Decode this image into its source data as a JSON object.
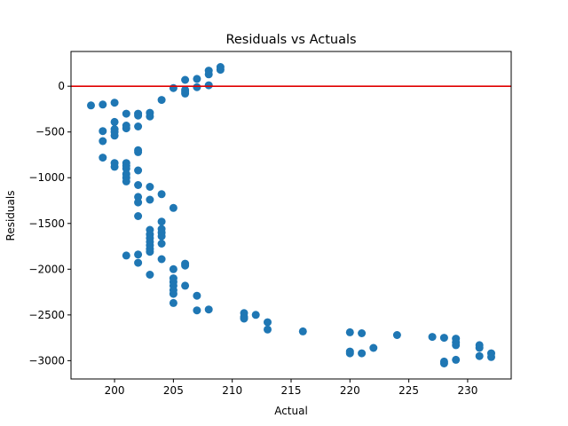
{
  "chart_data": {
    "type": "scatter",
    "title": "Residuals vs Actuals",
    "xlabel": "Actual",
    "ylabel": "Residuals",
    "xlim": [
      196.3,
      233.7
    ],
    "ylim": [
      -3200,
      380
    ],
    "xticks": [
      200,
      205,
      210,
      215,
      220,
      225,
      230
    ],
    "yticks": [
      -3000,
      -2500,
      -2000,
      -1500,
      -1000,
      -500,
      0
    ],
    "ytick_labels": [
      "−3000",
      "−2500",
      "−2000",
      "−1500",
      "−1000",
      "−500",
      "0"
    ],
    "grid": false,
    "reference_line": {
      "y": 0,
      "color": "#e00000"
    },
    "marker_color": "#1f77b4",
    "points": [
      [
        198,
        -210
      ],
      [
        199,
        -200
      ],
      [
        200,
        -180
      ],
      [
        204,
        -150
      ],
      [
        201,
        -300
      ],
      [
        202,
        -300
      ],
      [
        203,
        -290
      ],
      [
        202,
        -320
      ],
      [
        203,
        -330
      ],
      [
        200,
        -390
      ],
      [
        201,
        -430
      ],
      [
        202,
        -440
      ],
      [
        201,
        -460
      ],
      [
        199,
        -490
      ],
      [
        200,
        -470
      ],
      [
        200,
        -500
      ],
      [
        200,
        -540
      ],
      [
        199,
        -600
      ],
      [
        202,
        -700
      ],
      [
        202,
        -720
      ],
      [
        199,
        -780
      ],
      [
        200,
        -840
      ],
      [
        201,
        -840
      ],
      [
        200,
        -880
      ],
      [
        201,
        -870
      ],
      [
        202,
        -920
      ],
      [
        201,
        -900
      ],
      [
        201,
        -960
      ],
      [
        201,
        -1000
      ],
      [
        201,
        -1040
      ],
      [
        202,
        -1080
      ],
      [
        203,
        -1100
      ],
      [
        204,
        -1180
      ],
      [
        202,
        -1210
      ],
      [
        203,
        -1240
      ],
      [
        202,
        -1270
      ],
      [
        205,
        -1330
      ],
      [
        202,
        -1420
      ],
      [
        204,
        -1480
      ],
      [
        204,
        -1560
      ],
      [
        203,
        -1570
      ],
      [
        204,
        -1600
      ],
      [
        203,
        -1620
      ],
      [
        204,
        -1640
      ],
      [
        203,
        -1660
      ],
      [
        203,
        -1700
      ],
      [
        204,
        -1720
      ],
      [
        203,
        -1740
      ],
      [
        203,
        -1780
      ],
      [
        203,
        -1810
      ],
      [
        201,
        -1850
      ],
      [
        202,
        -1840
      ],
      [
        204,
        -1890
      ],
      [
        202,
        -1930
      ],
      [
        206,
        -1940
      ],
      [
        206,
        -1960
      ],
      [
        205,
        -2000
      ],
      [
        203,
        -2060
      ],
      [
        205,
        -2100
      ],
      [
        205,
        -2140
      ],
      [
        205,
        -2180
      ],
      [
        206,
        -2180
      ],
      [
        205,
        -2230
      ],
      [
        205,
        -2270
      ],
      [
        207,
        -2290
      ],
      [
        205,
        -2370
      ],
      [
        208,
        -2440
      ],
      [
        207,
        -2450
      ],
      [
        211,
        -2480
      ],
      [
        212,
        -2500
      ],
      [
        211,
        -2520
      ],
      [
        211,
        -2540
      ],
      [
        213,
        -2580
      ],
      [
        213,
        -2660
      ],
      [
        216,
        -2680
      ],
      [
        220,
        -2690
      ],
      [
        221,
        -2700
      ],
      [
        224,
        -2720
      ],
      [
        227,
        -2740
      ],
      [
        228,
        -2750
      ],
      [
        229,
        -2760
      ],
      [
        229,
        -2800
      ],
      [
        229,
        -2830
      ],
      [
        231,
        -2830
      ],
      [
        231,
        -2860
      ],
      [
        222,
        -2860
      ],
      [
        220,
        -2900
      ],
      [
        220,
        -2920
      ],
      [
        221,
        -2920
      ],
      [
        232,
        -2920
      ],
      [
        232,
        -2960
      ],
      [
        231,
        -2950
      ],
      [
        229,
        -2990
      ],
      [
        228,
        -3010
      ],
      [
        228,
        -3030
      ],
      [
        205,
        -20
      ],
      [
        206,
        70
      ],
      [
        207,
        80
      ],
      [
        208,
        130
      ],
      [
        208,
        170
      ],
      [
        209,
        180
      ],
      [
        209,
        210
      ],
      [
        207,
        -10
      ],
      [
        208,
        10
      ],
      [
        206,
        -40
      ],
      [
        206,
        -80
      ],
      [
        206,
        -60
      ]
    ]
  }
}
